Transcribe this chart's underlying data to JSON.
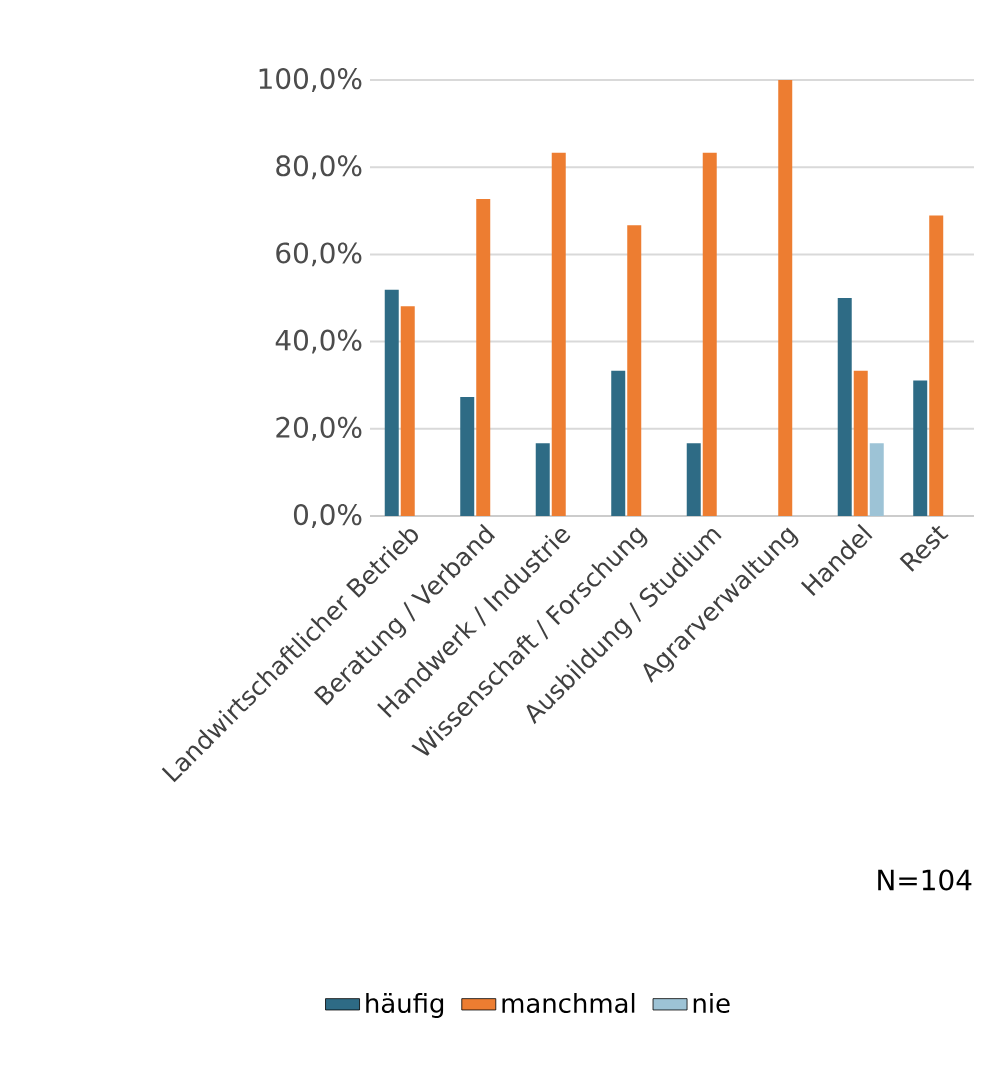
{
  "chart_data": {
    "type": "bar",
    "categories": [
      "Landwirtschaftlicher Betrieb",
      "Beratung / Verband",
      "Handwerk / Industrie",
      "Wissenschaft / Forschung",
      "Ausbildung / Studium",
      "Agrarverwaltung",
      "Handel",
      "Rest"
    ],
    "series": [
      {
        "name": "häufig",
        "color": "#2e6b85",
        "values": [
          51.9,
          27.3,
          16.7,
          33.3,
          16.7,
          null,
          50.0,
          31.1
        ]
      },
      {
        "name": "manchmal",
        "color": "#ed7d31",
        "values": [
          48.1,
          72.7,
          83.3,
          66.7,
          83.3,
          100.0,
          33.3,
          68.9
        ]
      },
      {
        "name": "nie",
        "color": "#9dc3d6",
        "values": [
          null,
          null,
          null,
          null,
          null,
          null,
          16.7,
          null
        ]
      }
    ],
    "ylim": [
      0,
      100
    ],
    "yticks": [
      {
        "value": 0,
        "label": "0,0%"
      },
      {
        "value": 20,
        "label": "20,0%"
      },
      {
        "value": 40,
        "label": "40,0%"
      },
      {
        "value": 60,
        "label": "60,0%"
      },
      {
        "value": 80,
        "label": "80,0%"
      },
      {
        "value": 100,
        "label": "100,0%"
      }
    ],
    "grid": "y",
    "legend": "bottom",
    "annotations": [
      "N=104"
    ]
  }
}
